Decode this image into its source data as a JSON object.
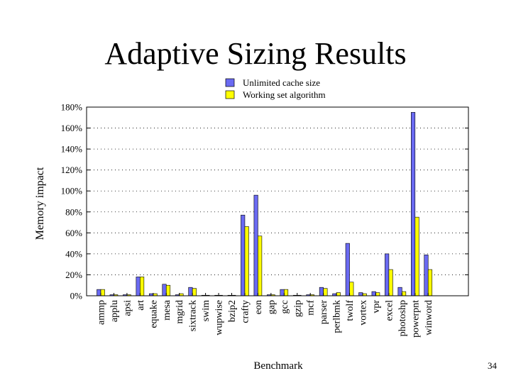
{
  "slide": {
    "title": "Adaptive Sizing Results",
    "page_number": "34"
  },
  "colors": {
    "series_1": "#6a6af2",
    "series_2": "#ffff00",
    "grid": "#000000"
  },
  "chart_data": {
    "type": "bar",
    "title": "",
    "xlabel": "Benchmark",
    "ylabel": "Memory impact",
    "ylim": [
      0,
      180
    ],
    "y_ticks": [
      0,
      20,
      40,
      60,
      80,
      100,
      120,
      140,
      160,
      180
    ],
    "y_tick_labels": [
      "0%",
      "20%",
      "40%",
      "60%",
      "80%",
      "100%",
      "120%",
      "140%",
      "160%",
      "180%"
    ],
    "grid": true,
    "legend_position": "top-center",
    "categories": [
      "ammp",
      "applu",
      "apsi",
      "art",
      "equake",
      "mesa",
      "mgrid",
      "sixtrack",
      "swim",
      "wupwise",
      "bzip2",
      "crafty",
      "eon",
      "gap",
      "gcc",
      "gzip",
      "mcf",
      "parser",
      "perlbmk",
      "twolf",
      "vortex",
      "vpr",
      "excel",
      "photoshp",
      "powerpnt",
      "winword"
    ],
    "series": [
      {
        "name": "Unlimited cache size",
        "values": [
          6,
          1,
          1,
          18,
          2,
          11,
          1,
          8,
          0.5,
          0.5,
          0.5,
          77,
          96,
          1,
          6,
          0.5,
          1,
          8,
          2,
          50,
          3,
          4,
          40,
          8,
          175,
          39
        ]
      },
      {
        "name": "Working set algorithm",
        "values": [
          6,
          1,
          1,
          18,
          2,
          10,
          2,
          7,
          0.5,
          0.5,
          0.5,
          66,
          57,
          1,
          6,
          0.5,
          1,
          7,
          3,
          13,
          2,
          3,
          25,
          4,
          75,
          25
        ]
      }
    ]
  }
}
